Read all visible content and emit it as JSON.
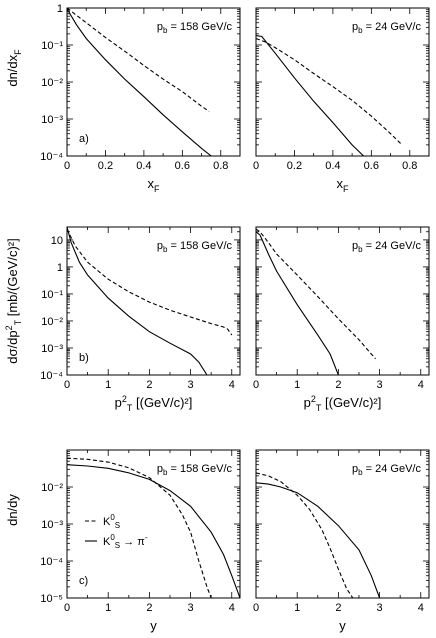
{
  "figure": {
    "rows": [
      {
        "ylabel": "dn/dx",
        "ylabel_sub": "F",
        "ylabel_sup": "",
        "ylabel_rest": "",
        "xlabel": "x",
        "xlabel_sub": "F",
        "xlabel_sup": "",
        "xlabel_rest": "",
        "panel_letter": "a)"
      },
      {
        "ylabel": "dσ/dp",
        "ylabel_sub": "T",
        "ylabel_sup": "2",
        "ylabel_rest": " [mb/(GeV/c)²]",
        "xlabel": "p",
        "xlabel_sub": "T",
        "xlabel_sup": "2",
        "xlabel_rest": " [(GeV/c)²]",
        "panel_letter": "b)"
      },
      {
        "ylabel": "dn/dy",
        "ylabel_sub": "",
        "ylabel_sup": "",
        "ylabel_rest": "",
        "xlabel": "y",
        "xlabel_sub": "",
        "xlabel_sup": "",
        "xlabel_rest": "",
        "panel_letter": "c)"
      }
    ],
    "beam_labels": [
      {
        "p": "p",
        "sub": "b",
        "text": " = 158 GeV/c"
      },
      {
        "p": "p",
        "sub": "b",
        "text": " = 24 GeV/c"
      }
    ],
    "legend": [
      {
        "style": "dashed",
        "label": "K",
        "sub": "S",
        "sup": "0",
        "rest": ""
      },
      {
        "style": "solid",
        "label": "K",
        "sub": "S",
        "sup": "0",
        "rest": " → π",
        "rest_sup": "-"
      }
    ]
  },
  "chart_data": [
    {
      "type": "line",
      "row": 0,
      "col": 0,
      "scale": "log",
      "xlim": [
        0,
        0.9
      ],
      "ylim": [
        0.0001,
        1
      ],
      "x_ticks": [
        0,
        0.2,
        0.4,
        0.6,
        0.8
      ],
      "x_tick_labels": [
        "0",
        "0.2",
        "0.4",
        "0.6",
        "0.8"
      ],
      "y_tick_labels": [
        "10⁻⁴",
        "10⁻³",
        "10⁻²",
        "10⁻¹",
        "1"
      ],
      "series": [
        {
          "style": "dashed",
          "x": [
            0,
            0.1,
            0.2,
            0.3,
            0.4,
            0.5,
            0.6,
            0.7,
            0.74
          ],
          "y": [
            1.0,
            0.4,
            0.16,
            0.068,
            0.028,
            0.012,
            0.0055,
            0.0022,
            0.0016
          ]
        },
        {
          "style": "solid",
          "x": [
            0,
            0.05,
            0.1,
            0.2,
            0.3,
            0.4,
            0.5,
            0.6,
            0.7,
            0.75
          ],
          "y": [
            0.95,
            0.35,
            0.15,
            0.04,
            0.012,
            0.004,
            0.0013,
            0.00045,
            0.00016,
            0.0001
          ]
        }
      ]
    },
    {
      "type": "line",
      "row": 0,
      "col": 1,
      "scale": "log",
      "xlim": [
        0,
        0.9
      ],
      "ylim": [
        0.0001,
        1
      ],
      "x_ticks": [
        0,
        0.2,
        0.4,
        0.6,
        0.8
      ],
      "x_tick_labels": [
        "0",
        "0.2",
        "0.4",
        "0.6",
        "0.8"
      ],
      "y_tick_labels": [],
      "series": [
        {
          "style": "dashed",
          "x": [
            0,
            0.05,
            0.1,
            0.2,
            0.3,
            0.4,
            0.5,
            0.6,
            0.7,
            0.76
          ],
          "y": [
            0.15,
            0.12,
            0.085,
            0.04,
            0.017,
            0.0075,
            0.0032,
            0.0012,
            0.0004,
            0.0002
          ]
        },
        {
          "style": "solid",
          "x": [
            0,
            0.03,
            0.1,
            0.2,
            0.3,
            0.4,
            0.5,
            0.56
          ],
          "y": [
            0.18,
            0.17,
            0.06,
            0.013,
            0.003,
            0.0008,
            0.0002,
            0.0001
          ]
        }
      ]
    },
    {
      "type": "line",
      "row": 1,
      "col": 0,
      "scale": "log",
      "xlim": [
        0,
        4.2
      ],
      "ylim": [
        0.0001,
        30
      ],
      "x_ticks": [
        0,
        1,
        2,
        3,
        4
      ],
      "x_tick_labels": [
        "0",
        "1",
        "2",
        "3",
        "4"
      ],
      "y_tick_labels": [
        "10⁻⁴",
        "10⁻³",
        "10⁻²",
        "10⁻¹",
        "1",
        "10"
      ],
      "series": [
        {
          "style": "dashed",
          "x": [
            0,
            0.2,
            0.5,
            1.0,
            1.5,
            2.0,
            2.5,
            3.0,
            3.5,
            3.8,
            3.9,
            4.0
          ],
          "y": [
            25,
            6,
            1.5,
            0.35,
            0.12,
            0.05,
            0.025,
            0.014,
            0.008,
            0.006,
            0.005,
            0.003
          ]
        },
        {
          "style": "solid",
          "x": [
            0,
            0.1,
            0.3,
            0.5,
            1.0,
            1.5,
            2.0,
            2.5,
            3.0,
            3.2,
            3.4
          ],
          "y": [
            30,
            8,
            1.5,
            0.5,
            0.07,
            0.015,
            0.004,
            0.0015,
            0.0006,
            0.0003,
            0.0001
          ]
        }
      ]
    },
    {
      "type": "line",
      "row": 1,
      "col": 1,
      "scale": "log",
      "xlim": [
        0,
        4.2
      ],
      "ylim": [
        0.0001,
        30
      ],
      "x_ticks": [
        0,
        1,
        2,
        3,
        4
      ],
      "x_tick_labels": [
        "0",
        "1",
        "2",
        "3",
        "4"
      ],
      "y_tick_labels": [],
      "series": [
        {
          "style": "dashed",
          "x": [
            0,
            0.1,
            0.3,
            0.5,
            1.0,
            1.5,
            2.0,
            2.5,
            2.8,
            2.9
          ],
          "y": [
            25,
            20,
            8,
            3.0,
            0.5,
            0.08,
            0.012,
            0.002,
            0.0006,
            0.0004
          ]
        },
        {
          "style": "solid",
          "x": [
            0,
            0.1,
            0.3,
            0.5,
            1.0,
            1.5,
            1.8,
            2.0
          ],
          "y": [
            20,
            15,
            3.0,
            0.7,
            0.04,
            0.003,
            0.0006,
            0.0001
          ]
        }
      ]
    },
    {
      "type": "line",
      "row": 2,
      "col": 0,
      "scale": "log",
      "xlim": [
        0,
        4.2
      ],
      "ylim": [
        1e-05,
        0.1
      ],
      "x_ticks": [
        0,
        1,
        2,
        3,
        4
      ],
      "x_tick_labels": [
        "0",
        "1",
        "2",
        "3",
        "4"
      ],
      "y_tick_labels": [
        "10⁻⁵",
        "10⁻⁴",
        "10⁻³",
        "10⁻²"
      ],
      "series": [
        {
          "style": "dashed",
          "x": [
            0,
            0.5,
            1.0,
            1.5,
            2.0,
            2.5,
            2.8,
            3.0,
            3.2,
            3.4,
            3.5
          ],
          "y": [
            0.06,
            0.056,
            0.047,
            0.033,
            0.018,
            0.006,
            0.0018,
            0.0006,
            0.0001,
            2e-05,
            1e-05
          ]
        },
        {
          "style": "solid",
          "x": [
            0,
            0.5,
            1.0,
            1.5,
            2.0,
            2.5,
            3.0,
            3.5,
            3.8,
            4.0,
            4.2
          ],
          "y": [
            0.04,
            0.037,
            0.032,
            0.024,
            0.016,
            0.008,
            0.003,
            0.0006,
            0.00015,
            4e-05,
            1e-05
          ]
        }
      ]
    },
    {
      "type": "line",
      "row": 2,
      "col": 1,
      "scale": "log",
      "xlim": [
        0,
        4.2
      ],
      "ylim": [
        1e-05,
        0.1
      ],
      "x_ticks": [
        0,
        1,
        2,
        3,
        4
      ],
      "x_tick_labels": [
        "0",
        "1",
        "2",
        "3",
        "4"
      ],
      "y_tick_labels": [],
      "series": [
        {
          "style": "dashed",
          "x": [
            0,
            0.3,
            0.6,
            1.0,
            1.3,
            1.6,
            1.8,
            2.0,
            2.2,
            2.35
          ],
          "y": [
            0.024,
            0.02,
            0.014,
            0.006,
            0.0025,
            0.0007,
            0.00022,
            6e-05,
            1.8e-05,
            1e-05
          ]
        },
        {
          "style": "solid",
          "x": [
            0,
            0.3,
            0.6,
            1.0,
            1.5,
            2.0,
            2.5,
            2.8,
            3.0
          ],
          "y": [
            0.013,
            0.012,
            0.01,
            0.007,
            0.003,
            0.0009,
            0.0002,
            4e-05,
            1e-05
          ]
        }
      ]
    }
  ]
}
